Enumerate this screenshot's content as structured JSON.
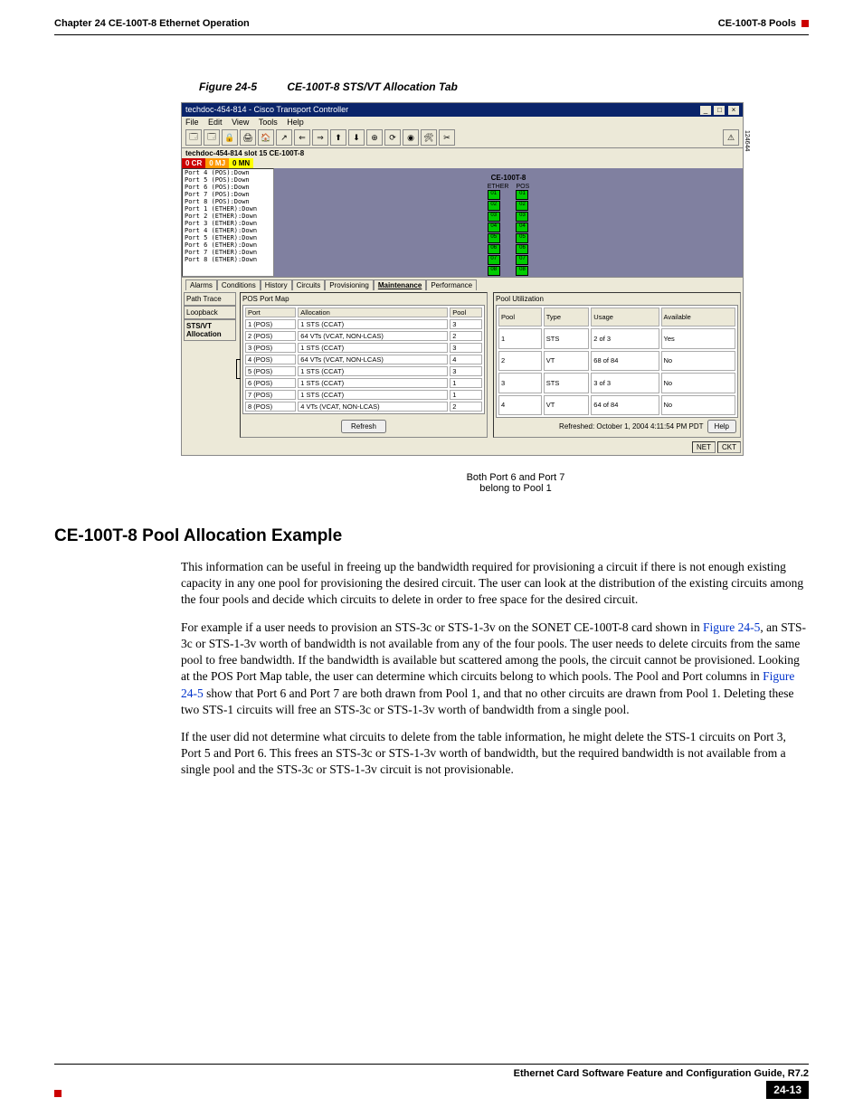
{
  "header": {
    "left": "Chapter 24 CE-100T-8 Ethernet Operation",
    "right": "CE-100T-8 Pools"
  },
  "figure": {
    "number": "Figure 24-5",
    "title": "CE-100T-8 STS/VT Allocation Tab"
  },
  "window": {
    "title": "techdoc-454-814 - Cisco Transport Controller",
    "menus": [
      "File",
      "Edit",
      "View",
      "Tools",
      "Help"
    ],
    "breadcrumb": "techdoc-454-814 slot 15 CE-100T-8",
    "alarms": {
      "cr": "0 CR",
      "mj": "0 MJ",
      "mn": "0 MN"
    },
    "portlist": [
      "Port 4 (POS):Down",
      "Port 5 (POS):Down",
      "Port 6 (POS):Down",
      "Port 7 (POS):Down",
      "Port 8 (POS):Down",
      "Port 1 (ETHER):Down",
      "Port 2 (ETHER):Down",
      "Port 3 (ETHER):Down",
      "Port 4 (ETHER):Down",
      "Port 5 (ETHER):Down",
      "Port 6 (ETHER):Down",
      "Port 7 (ETHER):Down",
      "Port 8 (ETHER):Down"
    ],
    "module": "CE-100T-8",
    "col_ether": "ETHER",
    "col_pos": "POS",
    "tabs": [
      "Alarms",
      "Conditions",
      "History",
      "Circuits",
      "Provisioning",
      "Maintenance",
      "Performance"
    ],
    "side_tabs": [
      "Path Trace",
      "Loopback",
      "STS/VT Allocation"
    ],
    "left_panel_title": "POS Port Map",
    "right_panel_title": "Pool Utilization",
    "pos_headers": [
      "Port",
      "Allocation",
      "Pool"
    ],
    "pos_rows": [
      [
        "1 (POS)",
        "1 STS (CCAT)",
        "3"
      ],
      [
        "2 (POS)",
        "64 VTs (VCAT, NON-LCAS)",
        "2"
      ],
      [
        "3 (POS)",
        "1 STS (CCAT)",
        "3"
      ],
      [
        "4 (POS)",
        "64 VTs (VCAT, NON-LCAS)",
        "4"
      ],
      [
        "5 (POS)",
        "1 STS (CCAT)",
        "3"
      ],
      [
        "6 (POS)",
        "1 STS (CCAT)",
        "1"
      ],
      [
        "7 (POS)",
        "1 STS (CCAT)",
        "1"
      ],
      [
        "8 (POS)",
        "4 VTs (VCAT, NON-LCAS)",
        "2"
      ]
    ],
    "pool_headers": [
      "Pool",
      "Type",
      "Usage",
      "Available"
    ],
    "pool_rows": [
      [
        "1",
        "STS",
        "2 of 3",
        "Yes"
      ],
      [
        "2",
        "VT",
        "68 of 84",
        "No"
      ],
      [
        "3",
        "STS",
        "3 of 3",
        "No"
      ],
      [
        "4",
        "VT",
        "64 of 84",
        "No"
      ]
    ],
    "refresh": "Refresh",
    "refreshed": "Refreshed: October 1, 2004 4:11:54 PM PDT",
    "help": "Help",
    "status": [
      "NET",
      "CKT"
    ]
  },
  "callout": {
    "line1": "Both Port 6 and Port 7",
    "line2": "belong to Pool 1"
  },
  "section": {
    "title": "CE-100T-8 Pool Allocation Example",
    "p1": "This information can be useful in freeing up the bandwidth required for provisioning a circuit if there is not enough existing capacity in any one pool for provisioning the desired circuit. The user can look at the distribution of the existing circuits among the four pools and decide which circuits to delete in order to free space for the desired circuit.",
    "p2a": "For example if a user needs to provision an STS-3c or STS-1-3v on the SONET CE-100T-8 card shown in ",
    "p2link1": "Figure 24-5",
    "p2b": ", an STS-3c or STS-1-3v worth of bandwidth is not available from any of the four pools. The user needs to delete circuits from the same pool to free bandwidth. If the bandwidth is available but scattered among the pools, the circuit cannot be provisioned. Looking at the POS Port Map table, the user can determine which circuits belong to which pools. The Pool and Port columns in ",
    "p2link2": "Figure 24-5",
    "p2c": " show that Port 6 and Port 7 are both drawn from Pool 1, and that no other circuits are drawn from Pool 1. Deleting these two STS-1 circuits will free an STS-3c or STS-1-3v worth of bandwidth from a single pool.",
    "p3": "If the user did not determine what circuits to delete from the table information, he might delete the STS-1 circuits on Port 3, Port 5 and Port 6. This frees an STS-3c or STS-1-3v worth of bandwidth, but the required bandwidth is not available from a single pool and the STS-3c or STS-1-3v circuit is not provisionable."
  },
  "footer": {
    "doc": "Ethernet Card Software Feature and Configuration Guide, R7.2",
    "page": "24-13"
  },
  "badge": "124644"
}
